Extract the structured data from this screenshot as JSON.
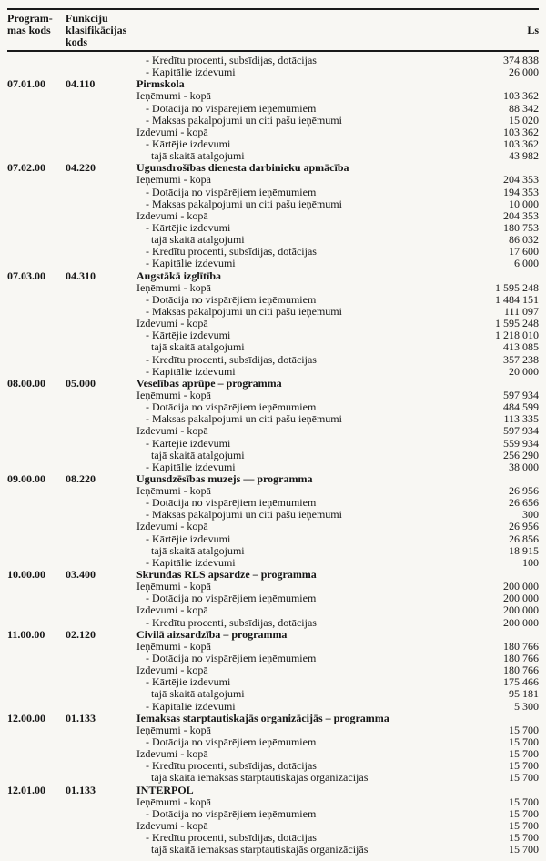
{
  "header": {
    "program_line1": "Program-",
    "program_line2": "mas kods",
    "function_line1": "Funkciju",
    "function_line2": "klasifikācijas",
    "function_line3": "kods",
    "amount_unit": "Ls"
  },
  "table": {
    "rows": [
      {
        "program_code": "",
        "function_code": "",
        "level": 1,
        "bold": false,
        "label": "- Kredītu procenti, subsīdijas, dotācijas",
        "amount": "374 838"
      },
      {
        "program_code": "",
        "function_code": "",
        "level": 1,
        "bold": false,
        "label": "- Kapitālie izdevumi",
        "amount": "26 000"
      },
      {
        "program_code": "07.01.00",
        "function_code": "04.110",
        "level": 0,
        "bold": true,
        "label": "Pirmskola",
        "amount": ""
      },
      {
        "program_code": "",
        "function_code": "",
        "level": 0,
        "bold": false,
        "label": "Ieņēmumi - kopā",
        "amount": "103 362"
      },
      {
        "program_code": "",
        "function_code": "",
        "level": 1,
        "bold": false,
        "label": "- Dotācija no vispārējiem ieņēmumiem",
        "amount": "88 342"
      },
      {
        "program_code": "",
        "function_code": "",
        "level": 1,
        "bold": false,
        "label": "- Maksas pakalpojumi un citi pašu ieņēmumi",
        "amount": "15 020"
      },
      {
        "program_code": "",
        "function_code": "",
        "level": 0,
        "bold": false,
        "label": "Izdevumi - kopā",
        "amount": "103 362"
      },
      {
        "program_code": "",
        "function_code": "",
        "level": 1,
        "bold": false,
        "label": "- Kārtējie izdevumi",
        "amount": "103 362"
      },
      {
        "program_code": "",
        "function_code": "",
        "level": 2,
        "bold": false,
        "label": "tajā skaitā atalgojumi",
        "amount": "43 982"
      },
      {
        "program_code": "07.02.00",
        "function_code": "04.220",
        "level": 0,
        "bold": true,
        "label": "Ugunsdrošības dienesta darbinieku apmācība",
        "amount": ""
      },
      {
        "program_code": "",
        "function_code": "",
        "level": 0,
        "bold": false,
        "label": "Ieņēmumi - kopā",
        "amount": "204 353"
      },
      {
        "program_code": "",
        "function_code": "",
        "level": 1,
        "bold": false,
        "label": "- Dotācija no vispārējiem ieņēmumiem",
        "amount": "194 353"
      },
      {
        "program_code": "",
        "function_code": "",
        "level": 1,
        "bold": false,
        "label": "- Maksas pakalpojumi un citi pašu ieņēmumi",
        "amount": "10 000"
      },
      {
        "program_code": "",
        "function_code": "",
        "level": 0,
        "bold": false,
        "label": "Izdevumi - kopā",
        "amount": "204 353"
      },
      {
        "program_code": "",
        "function_code": "",
        "level": 1,
        "bold": false,
        "label": "- Kārtējie izdevumi",
        "amount": "180 753"
      },
      {
        "program_code": "",
        "function_code": "",
        "level": 2,
        "bold": false,
        "label": "tajā skaitā atalgojumi",
        "amount": "86 032"
      },
      {
        "program_code": "",
        "function_code": "",
        "level": 1,
        "bold": false,
        "label": "- Kredītu procenti, subsīdijas, dotācijas",
        "amount": "17 600"
      },
      {
        "program_code": "",
        "function_code": "",
        "level": 1,
        "bold": false,
        "label": "- Kapitālie izdevumi",
        "amount": "6 000"
      },
      {
        "program_code": "07.03.00",
        "function_code": "04.310",
        "level": 0,
        "bold": true,
        "label": "Augstākā izglītība",
        "amount": ""
      },
      {
        "program_code": "",
        "function_code": "",
        "level": 0,
        "bold": false,
        "label": "Ieņēmumi - kopā",
        "amount": "1 595 248"
      },
      {
        "program_code": "",
        "function_code": "",
        "level": 1,
        "bold": false,
        "label": "- Dotācija no vispārējiem ieņēmumiem",
        "amount": "1 484 151"
      },
      {
        "program_code": "",
        "function_code": "",
        "level": 1,
        "bold": false,
        "label": "- Maksas pakalpojumi un citi pašu ieņēmumi",
        "amount": "111 097"
      },
      {
        "program_code": "",
        "function_code": "",
        "level": 0,
        "bold": false,
        "label": "Izdevumi - kopā",
        "amount": "1 595 248"
      },
      {
        "program_code": "",
        "function_code": "",
        "level": 1,
        "bold": false,
        "label": "- Kārtējie izdevumi",
        "amount": "1 218 010"
      },
      {
        "program_code": "",
        "function_code": "",
        "level": 2,
        "bold": false,
        "label": "tajā skaitā atalgojumi",
        "amount": "413 085"
      },
      {
        "program_code": "",
        "function_code": "",
        "level": 1,
        "bold": false,
        "label": "- Kredītu procenti, subsīdijas, dotācijas",
        "amount": "357 238"
      },
      {
        "program_code": "",
        "function_code": "",
        "level": 1,
        "bold": false,
        "label": "- Kapitālie izdevumi",
        "amount": "20 000"
      },
      {
        "program_code": "08.00.00",
        "function_code": "05.000",
        "level": 0,
        "bold": true,
        "label": "Veselības aprūpe – programma",
        "amount": ""
      },
      {
        "program_code": "",
        "function_code": "",
        "level": 0,
        "bold": false,
        "label": "Ieņēmumi - kopā",
        "amount": "597 934"
      },
      {
        "program_code": "",
        "function_code": "",
        "level": 1,
        "bold": false,
        "label": "- Dotācija no vispārējiem ieņēmumiem",
        "amount": "484 599"
      },
      {
        "program_code": "",
        "function_code": "",
        "level": 1,
        "bold": false,
        "label": "- Maksas pakalpojumi un citi pašu ieņēmumi",
        "amount": "113 335"
      },
      {
        "program_code": "",
        "function_code": "",
        "level": 0,
        "bold": false,
        "label": "Izdevumi - kopā",
        "amount": "597 934"
      },
      {
        "program_code": "",
        "function_code": "",
        "level": 1,
        "bold": false,
        "label": "- Kārtējie izdevumi",
        "amount": "559 934"
      },
      {
        "program_code": "",
        "function_code": "",
        "level": 2,
        "bold": false,
        "label": "tajā skaitā atalgojumi",
        "amount": "256 290"
      },
      {
        "program_code": "",
        "function_code": "",
        "level": 1,
        "bold": false,
        "label": "- Kapitālie izdevumi",
        "amount": "38 000"
      },
      {
        "program_code": "09.00.00",
        "function_code": "08.220",
        "level": 0,
        "bold": true,
        "label": "Ugunsdzēsības muzejs — programma",
        "amount": ""
      },
      {
        "program_code": "",
        "function_code": "",
        "level": 0,
        "bold": false,
        "label": "Ieņēmumi - kopā",
        "amount": "26 956"
      },
      {
        "program_code": "",
        "function_code": "",
        "level": 1,
        "bold": false,
        "label": "- Dotācija no vispārējiem ieņēmumiem",
        "amount": "26 656"
      },
      {
        "program_code": "",
        "function_code": "",
        "level": 1,
        "bold": false,
        "label": "- Maksas pakalpojumi un citi pašu ieņēmumi",
        "amount": "300"
      },
      {
        "program_code": "",
        "function_code": "",
        "level": 0,
        "bold": false,
        "label": "Izdevumi - kopā",
        "amount": "26 956"
      },
      {
        "program_code": "",
        "function_code": "",
        "level": 1,
        "bold": false,
        "label": "- Kārtējie izdevumi",
        "amount": "26 856"
      },
      {
        "program_code": "",
        "function_code": "",
        "level": 2,
        "bold": false,
        "label": "tajā skaitā atalgojumi",
        "amount": "18 915"
      },
      {
        "program_code": "",
        "function_code": "",
        "level": 1,
        "bold": false,
        "label": "- Kapitālie izdevumi",
        "amount": "100"
      },
      {
        "program_code": "10.00.00",
        "function_code": "03.400",
        "level": 0,
        "bold": true,
        "label": "Skrundas RLS apsardze – programma",
        "amount": ""
      },
      {
        "program_code": "",
        "function_code": "",
        "level": 0,
        "bold": false,
        "label": "Ieņēmumi - kopā",
        "amount": "200 000"
      },
      {
        "program_code": "",
        "function_code": "",
        "level": 1,
        "bold": false,
        "label": "- Dotācija no vispārējiem ieņēmumiem",
        "amount": "200 000"
      },
      {
        "program_code": "",
        "function_code": "",
        "level": 0,
        "bold": false,
        "label": "Izdevumi - kopā",
        "amount": "200 000"
      },
      {
        "program_code": "",
        "function_code": "",
        "level": 1,
        "bold": false,
        "label": "- Kredītu procenti, subsīdijas, dotācijas",
        "amount": "200 000"
      },
      {
        "program_code": "11.00.00",
        "function_code": "02.120",
        "level": 0,
        "bold": true,
        "label": "Civilā aizsardzība – programma",
        "amount": ""
      },
      {
        "program_code": "",
        "function_code": "",
        "level": 0,
        "bold": false,
        "label": "Ieņēmumi - kopā",
        "amount": "180 766"
      },
      {
        "program_code": "",
        "function_code": "",
        "level": 1,
        "bold": false,
        "label": "- Dotācija no vispārējiem ieņēmumiem",
        "amount": "180 766"
      },
      {
        "program_code": "",
        "function_code": "",
        "level": 0,
        "bold": false,
        "label": "Izdevumi - kopā",
        "amount": "180 766"
      },
      {
        "program_code": "",
        "function_code": "",
        "level": 1,
        "bold": false,
        "label": "- Kārtējie izdevumi",
        "amount": "175 466"
      },
      {
        "program_code": "",
        "function_code": "",
        "level": 2,
        "bold": false,
        "label": "tajā skaitā atalgojumi",
        "amount": "95 181"
      },
      {
        "program_code": "",
        "function_code": "",
        "level": 1,
        "bold": false,
        "label": "- Kapitālie izdevumi",
        "amount": "5 300"
      },
      {
        "program_code": "12.00.00",
        "function_code": "01.133",
        "level": 0,
        "bold": true,
        "label": "Iemaksas starptautiskajās organizācijās – programma",
        "amount": ""
      },
      {
        "program_code": "",
        "function_code": "",
        "level": 0,
        "bold": false,
        "label": "Ieņēmumi - kopā",
        "amount": "15 700"
      },
      {
        "program_code": "",
        "function_code": "",
        "level": 1,
        "bold": false,
        "label": "- Dotācija no vispārējiem ieņēmumiem",
        "amount": "15 700"
      },
      {
        "program_code": "",
        "function_code": "",
        "level": 0,
        "bold": false,
        "label": "Izdevumi - kopā",
        "amount": "15 700"
      },
      {
        "program_code": "",
        "function_code": "",
        "level": 1,
        "bold": false,
        "label": "- Kredītu procenti, subsīdijas, dotācijas",
        "amount": "15 700"
      },
      {
        "program_code": "",
        "function_code": "",
        "level": 2,
        "bold": false,
        "label": "tajā skaitā iemaksas starptautiskajās organizācijās",
        "amount": "15 700"
      },
      {
        "program_code": "12.01.00",
        "function_code": "01.133",
        "level": 0,
        "bold": true,
        "label": "INTERPOL",
        "amount": ""
      },
      {
        "program_code": "",
        "function_code": "",
        "level": 0,
        "bold": false,
        "label": "Ieņēmumi - kopā",
        "amount": "15 700"
      },
      {
        "program_code": "",
        "function_code": "",
        "level": 1,
        "bold": false,
        "label": "- Dotācija no vispārējiem ieņēmumiem",
        "amount": "15 700"
      },
      {
        "program_code": "",
        "function_code": "",
        "level": 0,
        "bold": false,
        "label": "Izdevumi - kopā",
        "amount": "15 700"
      },
      {
        "program_code": "",
        "function_code": "",
        "level": 1,
        "bold": false,
        "label": "- Kredītu procenti, subsīdijas, dotācijas",
        "amount": "15 700"
      },
      {
        "program_code": "",
        "function_code": "",
        "level": 2,
        "bold": false,
        "label": "tajā skaitā iemaksas starptautiskajās organizācijās",
        "amount": "15 700"
      }
    ]
  }
}
